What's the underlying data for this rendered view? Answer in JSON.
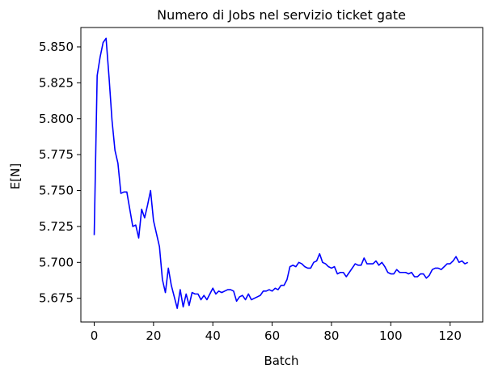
{
  "chart_data": {
    "type": "line",
    "title": "Numero di Jobs nel servizio ticket gate",
    "xlabel": "Batch",
    "ylabel": "E[N]",
    "xlim": [
      -4.5,
      131
    ],
    "ylim": [
      5.6585,
      5.8635
    ],
    "xticks": [
      0,
      20,
      40,
      60,
      80,
      100,
      120
    ],
    "yticks": [
      5.675,
      5.7,
      5.725,
      5.75,
      5.775,
      5.8,
      5.825,
      5.85
    ],
    "ytick_labels": [
      "5.675",
      "5.700",
      "5.725",
      "5.750",
      "5.775",
      "5.800",
      "5.825",
      "5.850"
    ],
    "grid": false,
    "series": [
      {
        "color": "#0000ff",
        "x": [
          0,
          1,
          2,
          3,
          4,
          5,
          6,
          7,
          8,
          9,
          10,
          11,
          12,
          13,
          14,
          15,
          16,
          17,
          18,
          19,
          20,
          21,
          22,
          23,
          24,
          25,
          26,
          27,
          28,
          29,
          30,
          31,
          32,
          33,
          34,
          35,
          36,
          37,
          38,
          39,
          40,
          41,
          42,
          43,
          44,
          45,
          46,
          47,
          48,
          49,
          50,
          51,
          52,
          53,
          54,
          55,
          56,
          57,
          58,
          59,
          60,
          61,
          62,
          63,
          64,
          65,
          66,
          67,
          68,
          69,
          70,
          71,
          72,
          73,
          74,
          75,
          76,
          77,
          78,
          79,
          80,
          81,
          82,
          83,
          84,
          85,
          86,
          87,
          88,
          89,
          90,
          91,
          92,
          93,
          94,
          95,
          96,
          97,
          98,
          99,
          100,
          101,
          102,
          103,
          104,
          105,
          106,
          107,
          108,
          109,
          110,
          111,
          112,
          113,
          114,
          115,
          116,
          117,
          118,
          119,
          120,
          121,
          122,
          123,
          124,
          125,
          126
        ],
        "values": [
          5.719,
          5.83,
          5.843,
          5.853,
          5.856,
          5.829,
          5.799,
          5.778,
          5.769,
          5.748,
          5.749,
          5.749,
          5.737,
          5.725,
          5.726,
          5.717,
          5.737,
          5.731,
          5.74,
          5.75,
          5.729,
          5.72,
          5.711,
          5.688,
          5.679,
          5.696,
          5.684,
          5.676,
          5.668,
          5.681,
          5.669,
          5.678,
          5.67,
          5.679,
          5.678,
          5.678,
          5.674,
          5.677,
          5.674,
          5.678,
          5.682,
          5.678,
          5.68,
          5.679,
          5.68,
          5.681,
          5.681,
          5.68,
          5.673,
          5.676,
          5.677,
          5.674,
          5.678,
          5.674,
          5.675,
          5.676,
          5.677,
          5.68,
          5.68,
          5.681,
          5.68,
          5.682,
          5.681,
          5.684,
          5.684,
          5.688,
          5.697,
          5.698,
          5.697,
          5.7,
          5.699,
          5.697,
          5.696,
          5.696,
          5.7,
          5.701,
          5.706,
          5.7,
          5.699,
          5.697,
          5.696,
          5.697,
          5.692,
          5.693,
          5.693,
          5.69,
          5.693,
          5.696,
          5.699,
          5.698,
          5.698,
          5.703,
          5.699,
          5.699,
          5.699,
          5.701,
          5.698,
          5.7,
          5.697,
          5.693,
          5.692,
          5.692,
          5.695,
          5.693,
          5.693,
          5.693,
          5.692,
          5.693,
          5.69,
          5.69,
          5.692,
          5.692,
          5.689,
          5.691,
          5.695,
          5.696,
          5.696,
          5.695,
          5.697,
          5.699,
          5.699,
          5.701,
          5.704,
          5.7,
          5.701,
          5.699,
          5.7
        ]
      }
    ]
  }
}
